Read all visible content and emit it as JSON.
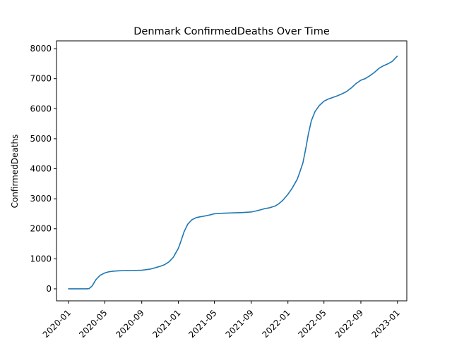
{
  "chart_data": {
    "type": "line",
    "title": "Denmark  ConfirmedDeaths Over Time",
    "xlabel": "",
    "ylabel": "ConfirmedDeaths",
    "x_ticks": [
      "2020-01",
      "2020-05",
      "2020-09",
      "2021-01",
      "2021-05",
      "2021-09",
      "2022-01",
      "2022-05",
      "2022-09",
      "2023-01"
    ],
    "y_ticks": [
      "0",
      "1000",
      "2000",
      "3000",
      "4000",
      "5000",
      "6000",
      "7000",
      "8000"
    ],
    "xlim": [
      "2019-11-22",
      "2023-02-01"
    ],
    "ylim": [
      -400,
      8260
    ],
    "grid": false,
    "line_color": "#1f77b4",
    "series": [
      {
        "x": [
          "2020-01-01",
          "2020-02-15",
          "2020-03-01",
          "2020-03-10",
          "2020-03-20",
          "2020-04-01",
          "2020-04-15",
          "2020-05-01",
          "2020-05-15",
          "2020-06-01",
          "2020-06-15",
          "2020-07-01",
          "2020-08-01",
          "2020-09-01",
          "2020-10-01",
          "2020-10-15",
          "2020-11-01",
          "2020-11-15",
          "2020-12-01",
          "2020-12-15",
          "2021-01-01",
          "2021-01-10",
          "2021-01-20",
          "2021-02-01",
          "2021-02-15",
          "2021-03-01",
          "2021-03-15",
          "2021-04-01",
          "2021-04-15",
          "2021-05-01",
          "2021-06-01",
          "2021-07-01",
          "2021-08-01",
          "2021-09-01",
          "2021-09-15",
          "2021-10-01",
          "2021-10-15",
          "2021-11-01",
          "2021-11-10",
          "2021-11-20",
          "2021-12-01",
          "2021-12-15",
          "2022-01-01",
          "2022-01-15",
          "2022-02-01",
          "2022-02-10",
          "2022-02-20",
          "2022-03-01",
          "2022-03-10",
          "2022-03-20",
          "2022-04-01",
          "2022-04-15",
          "2022-05-01",
          "2022-05-15",
          "2022-06-01",
          "2022-06-15",
          "2022-07-01",
          "2022-07-15",
          "2022-08-01",
          "2022-08-15",
          "2022-09-01",
          "2022-09-15",
          "2022-10-01",
          "2022-10-15",
          "2022-11-01",
          "2022-11-15",
          "2022-12-01",
          "2022-12-15",
          "2022-12-31"
        ],
        "y": [
          0,
          0,
          0,
          10,
          100,
          300,
          450,
          530,
          570,
          590,
          600,
          605,
          610,
          620,
          660,
          700,
          750,
          800,
          900,
          1050,
          1350,
          1600,
          1900,
          2150,
          2300,
          2370,
          2400,
          2430,
          2460,
          2500,
          2520,
          2530,
          2540,
          2560,
          2590,
          2630,
          2670,
          2700,
          2730,
          2760,
          2830,
          2950,
          3150,
          3350,
          3650,
          3900,
          4200,
          4650,
          5150,
          5600,
          5900,
          6100,
          6250,
          6320,
          6380,
          6430,
          6500,
          6570,
          6700,
          6830,
          6950,
          7000,
          7100,
          7200,
          7350,
          7430,
          7500,
          7580,
          7750
        ]
      }
    ]
  }
}
